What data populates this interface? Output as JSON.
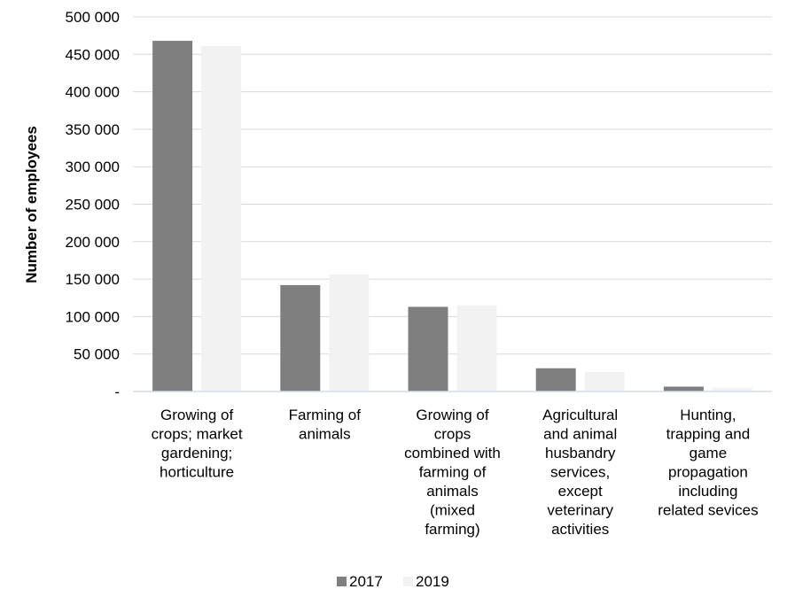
{
  "chart_data": {
    "type": "bar",
    "title": "",
    "xlabel": "",
    "ylabel": "Number of employees",
    "ylim": [
      0,
      500000
    ],
    "ytick_step": 50000,
    "ytick_labels": [
      "-",
      "50 000",
      "100 000",
      "150 000",
      "200 000",
      "250 000",
      "300 000",
      "350 000",
      "400 000",
      "450 000",
      "500 000"
    ],
    "grid": true,
    "legend_position": "bottom",
    "categories": [
      [
        "Growing of",
        "crops; market",
        "gardening;",
        "horticulture"
      ],
      [
        "Farming of",
        "animals"
      ],
      [
        "Growing of",
        "crops",
        "combined with",
        "farming of",
        "animals",
        "(mixed",
        "farming)"
      ],
      [
        "Agricultural",
        "and animal",
        "husbandry",
        "services,",
        "except",
        "veterinary",
        "activities"
      ],
      [
        "Hunting,",
        "trapping and",
        "game",
        "propagation",
        "including",
        "related sevices"
      ]
    ],
    "series": [
      {
        "name": "2017",
        "color": "#7f7f7f",
        "values": [
          468000,
          142000,
          113000,
          31000,
          6500
        ]
      },
      {
        "name": "2019",
        "color": "#f2f2f2",
        "values": [
          461000,
          156000,
          115000,
          26000,
          5000
        ]
      }
    ]
  }
}
